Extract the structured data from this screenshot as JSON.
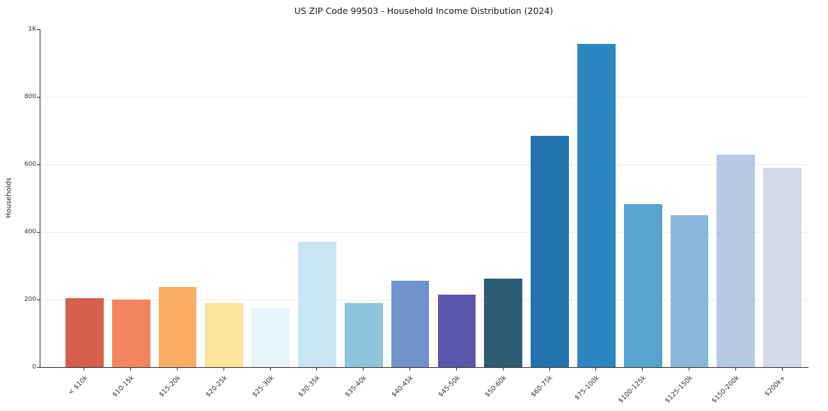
{
  "chart_data": {
    "type": "bar",
    "title": "US ZIP Code 99503 - Household Income Distribution (2024)",
    "xlabel": "",
    "ylabel": "Households",
    "categories": [
      "< $10k",
      "$10-15k",
      "$15-20k",
      "$20-25k",
      "$25-30k",
      "$30-35k",
      "$35-40k",
      "$40-45k",
      "$45-50k",
      "$50-60k",
      "$60-75k",
      "$75-100k",
      "$100-125k",
      "$125-150k",
      "$150-200k",
      "$200k+"
    ],
    "values": [
      205,
      200,
      238,
      190,
      175,
      372,
      190,
      255,
      215,
      262,
      685,
      957,
      482,
      450,
      628,
      590
    ],
    "colors": [
      "#d6604d",
      "#f4845e",
      "#fcae66",
      "#fee49c",
      "#e7f4f8",
      "#c7e6f1",
      "#8ec4de",
      "#7092cd",
      "#5b57ab",
      "#2e5d73",
      "#2374ae",
      "#2e86c0",
      "#55a4cb",
      "#89b9da",
      "#b7c9e4",
      "#d7d8e8"
    ],
    "ylim": [
      0,
      1000
    ],
    "yticks": [
      {
        "value": 0,
        "label": "0"
      },
      {
        "value": 200,
        "label": "200"
      },
      {
        "value": 400,
        "label": "400"
      },
      {
        "value": 600,
        "label": "600"
      },
      {
        "value": 800,
        "label": "800"
      },
      {
        "value": 1000,
        "label": "1K"
      }
    ],
    "grid": true,
    "legend": "none"
  }
}
